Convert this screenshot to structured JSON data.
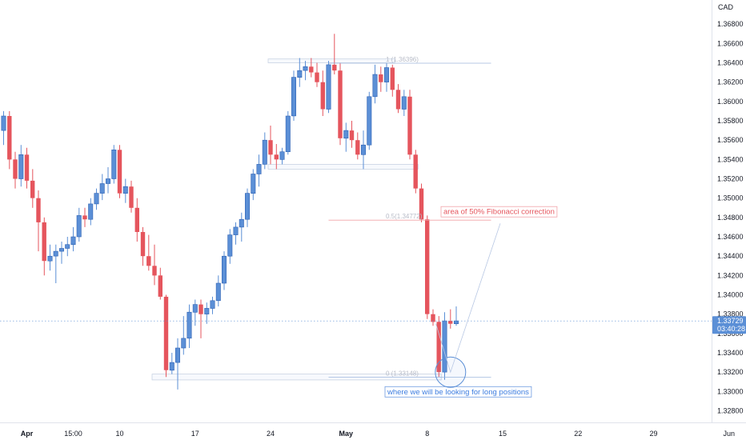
{
  "chart_data": {
    "type": "candlestick",
    "instrument_quote": "CAD",
    "price_ticks": [
      "1.36800",
      "1.36600",
      "1.36400",
      "1.36200",
      "1.36000",
      "1.35800",
      "1.35600",
      "1.35400",
      "1.35200",
      "1.35000",
      "1.34800",
      "1.34600",
      "1.34400",
      "1.34200",
      "1.34000",
      "1.33800",
      "1.33600",
      "1.33400",
      "1.33200",
      "1.33000",
      "1.32800"
    ],
    "ylim": [
      1.3268,
      1.37
    ],
    "date_labels": [
      {
        "label": "Apr",
        "bar": 6,
        "bold": true
      },
      {
        "label": "15:00",
        "bar": 14,
        "bold": false
      },
      {
        "label": "10",
        "bar": 22,
        "bold": false
      },
      {
        "label": "17",
        "bar": 35,
        "bold": false
      },
      {
        "label": "24",
        "bar": 48,
        "bold": false
      },
      {
        "label": "May",
        "bar": 61,
        "bold": true
      },
      {
        "label": "8",
        "bar": 75,
        "bold": false
      },
      {
        "label": "15",
        "bar": 88,
        "bold": false
      },
      {
        "label": "22",
        "bar": 101,
        "bold": false
      },
      {
        "label": "29",
        "bar": 114,
        "bold": false
      },
      {
        "label": "Jun",
        "bar": 127,
        "bold": false
      }
    ],
    "up_color": "#5b8fd6",
    "down_color": "#e5555d",
    "candles": [
      [
        1.3628,
        1.3638,
        1.3595,
        1.3603
      ],
      [
        1.3604,
        1.3612,
        1.3565,
        1.357
      ],
      [
        1.357,
        1.359,
        1.3555,
        1.3585
      ],
      [
        1.3585,
        1.359,
        1.353,
        1.354
      ],
      [
        1.354,
        1.3548,
        1.351,
        1.352
      ],
      [
        1.352,
        1.3555,
        1.3512,
        1.3545
      ],
      [
        1.3545,
        1.3552,
        1.351,
        1.3518
      ],
      [
        1.3518,
        1.353,
        1.349,
        1.35
      ],
      [
        1.35,
        1.3508,
        1.3445,
        1.3475
      ],
      [
        1.3475,
        1.348,
        1.342,
        1.3435
      ],
      [
        1.3435,
        1.3452,
        1.3425,
        1.344
      ],
      [
        1.344,
        1.3452,
        1.3412,
        1.3445
      ],
      [
        1.3445,
        1.3455,
        1.3432,
        1.3448
      ],
      [
        1.3448,
        1.346,
        1.344,
        1.3452
      ],
      [
        1.3452,
        1.347,
        1.3445,
        1.346
      ],
      [
        1.346,
        1.349,
        1.3455,
        1.3482
      ],
      [
        1.3482,
        1.349,
        1.347,
        1.3478
      ],
      [
        1.3478,
        1.35,
        1.3472,
        1.3494
      ],
      [
        1.3494,
        1.351,
        1.3488,
        1.3505
      ],
      [
        1.3505,
        1.3525,
        1.3498,
        1.3515
      ],
      [
        1.3515,
        1.3532,
        1.3505,
        1.352
      ],
      [
        1.352,
        1.3555,
        1.3515,
        1.355
      ],
      [
        1.355,
        1.3555,
        1.35,
        1.3505
      ],
      [
        1.3505,
        1.352,
        1.3495,
        1.3512
      ],
      [
        1.3512,
        1.3518,
        1.3485,
        1.349
      ],
      [
        1.349,
        1.35,
        1.3455,
        1.3465
      ],
      [
        1.3465,
        1.347,
        1.343,
        1.344
      ],
      [
        1.344,
        1.3462,
        1.3425,
        1.343
      ],
      [
        1.343,
        1.3452,
        1.341,
        1.342
      ],
      [
        1.342,
        1.3428,
        1.3395,
        1.3398
      ],
      [
        1.3398,
        1.34,
        1.3315,
        1.3322
      ],
      [
        1.3322,
        1.334,
        1.3318,
        1.333
      ],
      [
        1.333,
        1.3355,
        1.3302,
        1.3345
      ],
      [
        1.3345,
        1.3378,
        1.3338,
        1.3355
      ],
      [
        1.3355,
        1.339,
        1.3345,
        1.3382
      ],
      [
        1.3382,
        1.3395,
        1.3368,
        1.339
      ],
      [
        1.339,
        1.3395,
        1.3355,
        1.338
      ],
      [
        1.338,
        1.3392,
        1.337,
        1.3386
      ],
      [
        1.3386,
        1.3398,
        1.338,
        1.3394
      ],
      [
        1.3394,
        1.342,
        1.3388,
        1.3412
      ],
      [
        1.3412,
        1.3445,
        1.3405,
        1.344
      ],
      [
        1.344,
        1.3468,
        1.3432,
        1.3462
      ],
      [
        1.3462,
        1.3475,
        1.3452,
        1.347
      ],
      [
        1.347,
        1.3485,
        1.3455,
        1.3478
      ],
      [
        1.3478,
        1.351,
        1.347,
        1.3505
      ],
      [
        1.3505,
        1.353,
        1.3498,
        1.3525
      ],
      [
        1.3525,
        1.3545,
        1.3512,
        1.3535
      ],
      [
        1.3535,
        1.3568,
        1.353,
        1.356
      ],
      [
        1.356,
        1.3575,
        1.3535,
        1.3545
      ],
      [
        1.3545,
        1.3556,
        1.353,
        1.354
      ],
      [
        1.354,
        1.3552,
        1.3535,
        1.3548
      ],
      [
        1.3548,
        1.359,
        1.3545,
        1.3585
      ],
      [
        1.3585,
        1.3632,
        1.358,
        1.3625
      ],
      [
        1.3625,
        1.3645,
        1.3615,
        1.3632
      ],
      [
        1.3632,
        1.3642,
        1.3622,
        1.3636
      ],
      [
        1.3636,
        1.3645,
        1.3625,
        1.363
      ],
      [
        1.363,
        1.364,
        1.3615,
        1.362
      ],
      [
        1.362,
        1.3632,
        1.3585,
        1.3592
      ],
      [
        1.3592,
        1.3642,
        1.3588,
        1.3638
      ],
      [
        1.3638,
        1.367,
        1.3628,
        1.3632
      ],
      [
        1.3632,
        1.364,
        1.3555,
        1.3562
      ],
      [
        1.3562,
        1.3578,
        1.3548,
        1.357
      ],
      [
        1.357,
        1.358,
        1.3552,
        1.356
      ],
      [
        1.356,
        1.3568,
        1.354,
        1.3545
      ],
      [
        1.3545,
        1.357,
        1.353,
        1.3555
      ],
      [
        1.3555,
        1.361,
        1.355,
        1.3605
      ],
      [
        1.3605,
        1.3638,
        1.3598,
        1.3628
      ],
      [
        1.3628,
        1.3636,
        1.361,
        1.362
      ],
      [
        1.362,
        1.364,
        1.361,
        1.3635
      ],
      [
        1.3635,
        1.3638,
        1.3605,
        1.3612
      ],
      [
        1.3612,
        1.3618,
        1.3588,
        1.3592
      ],
      [
        1.3592,
        1.3612,
        1.3585,
        1.3605
      ],
      [
        1.3605,
        1.3612,
        1.354,
        1.3545
      ],
      [
        1.3545,
        1.355,
        1.3505,
        1.351
      ],
      [
        1.351,
        1.3515,
        1.3475,
        1.3478
      ],
      [
        1.3478,
        1.3482,
        1.3375,
        1.338
      ],
      [
        1.338,
        1.3385,
        1.3368,
        1.3372
      ],
      [
        1.3372,
        1.3378,
        1.3315,
        1.332
      ],
      [
        1.332,
        1.3382,
        1.3312,
        1.3373
      ],
      [
        1.3373,
        1.3385,
        1.3365,
        1.337
      ],
      [
        1.337,
        1.3388,
        1.3368,
        1.3373
      ]
    ],
    "levels": [
      {
        "name": "fib-100",
        "label": "1 (1.36396)",
        "price": 1.36396
      },
      {
        "name": "fib-50",
        "label": "0.5(1.34772)",
        "price": 1.34772
      },
      {
        "name": "fib-0",
        "label": "0 (1.33148)",
        "price": 1.33148
      }
    ],
    "current_price": "1.33729",
    "countdown": "03:40:28",
    "annotations": [
      {
        "name": "fibonacci-note",
        "text": "area of 50% Fibonacci correction",
        "color": "#e5555d"
      },
      {
        "name": "long-positions-note",
        "text": "where we will be looking for long positions",
        "color": "#3d7de0"
      }
    ]
  }
}
